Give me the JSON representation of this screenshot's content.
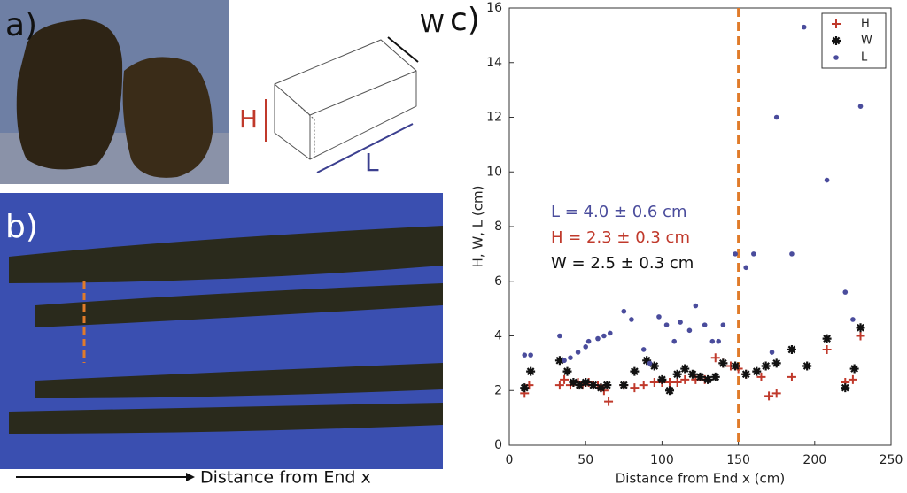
{
  "figure": {
    "panel_labels": [
      "a)",
      "b)",
      "c)"
    ],
    "diagram_labels": {
      "w": "W",
      "h": "H",
      "l": "L"
    },
    "photo_caption": "Distance from End x"
  },
  "chart_data": {
    "type": "scatter",
    "xlabel": "Distance from End x (cm)",
    "ylabel": "H, W, L (cm)",
    "xlim": [
      0,
      250
    ],
    "xticks": [
      0,
      50,
      100,
      150,
      200,
      250
    ],
    "ylim": [
      0,
      16
    ],
    "yticks": [
      0,
      2,
      4,
      6,
      8,
      10,
      12,
      14,
      16
    ],
    "legend": "upper right",
    "series": [
      {
        "name": "H",
        "color": "#c0392b",
        "marker": "+",
        "x": [
          10,
          13,
          33,
          36,
          40,
          45,
          48,
          52,
          58,
          62,
          65,
          75,
          82,
          88,
          95,
          100,
          105,
          110,
          115,
          122,
          128,
          135,
          140,
          145,
          150,
          155,
          165,
          170,
          175,
          185,
          208,
          220,
          225,
          230
        ],
        "values": [
          1.9,
          2.2,
          2.2,
          2.4,
          2.2,
          2.3,
          2.2,
          2.3,
          2.2,
          2.0,
          1.6,
          2.2,
          2.1,
          2.2,
          2.3,
          2.3,
          2.3,
          2.3,
          2.4,
          2.4,
          2.4,
          3.2,
          3.0,
          2.9,
          2.8,
          2.6,
          2.5,
          1.8,
          1.9,
          2.5,
          3.5,
          2.3,
          2.4,
          4.0
        ]
      },
      {
        "name": "W",
        "color": "#111111",
        "marker": "*",
        "x": [
          10,
          14,
          33,
          38,
          42,
          46,
          50,
          55,
          60,
          64,
          75,
          82,
          90,
          95,
          100,
          105,
          110,
          115,
          120,
          125,
          130,
          135,
          140,
          148,
          155,
          162,
          168,
          175,
          185,
          195,
          208,
          220,
          226,
          230
        ],
        "values": [
          2.1,
          2.7,
          3.1,
          2.7,
          2.3,
          2.2,
          2.3,
          2.2,
          2.1,
          2.2,
          2.2,
          2.7,
          3.1,
          2.9,
          2.4,
          2.0,
          2.6,
          2.8,
          2.6,
          2.5,
          2.4,
          2.5,
          3.0,
          2.9,
          2.6,
          2.7,
          2.9,
          3.0,
          3.5,
          2.9,
          3.9,
          2.1,
          2.8,
          4.3
        ]
      },
      {
        "name": "L",
        "color": "#4a4c9c",
        "marker": "o",
        "x": [
          10,
          14,
          33,
          36,
          40,
          45,
          50,
          52,
          58,
          62,
          66,
          75,
          80,
          88,
          92,
          98,
          103,
          108,
          112,
          118,
          122,
          128,
          133,
          137,
          140,
          148,
          155,
          160,
          172,
          175,
          185,
          193,
          208,
          220,
          225,
          230
        ],
        "values": [
          3.3,
          3.3,
          4.0,
          3.1,
          3.2,
          3.4,
          3.6,
          3.8,
          3.9,
          4.0,
          4.1,
          4.9,
          4.6,
          3.5,
          3.0,
          4.7,
          4.4,
          3.8,
          4.5,
          4.2,
          5.1,
          4.4,
          3.8,
          3.8,
          4.4,
          7.0,
          6.5,
          7.0,
          3.4,
          12.0,
          7.0,
          15.3,
          9.7,
          5.6,
          4.6,
          12.4
        ]
      }
    ],
    "annotations": [
      {
        "text": "L = 4.0 ± 0.6 cm",
        "color": "#4a4c9c"
      },
      {
        "text": "H = 2.3 ± 0.3 cm",
        "color": "#c0392b"
      },
      {
        "text": "W = 2.5 ± 0.3 cm",
        "color": "#111111"
      }
    ],
    "vline": {
      "x": 150,
      "color": "#e07b2a"
    }
  }
}
